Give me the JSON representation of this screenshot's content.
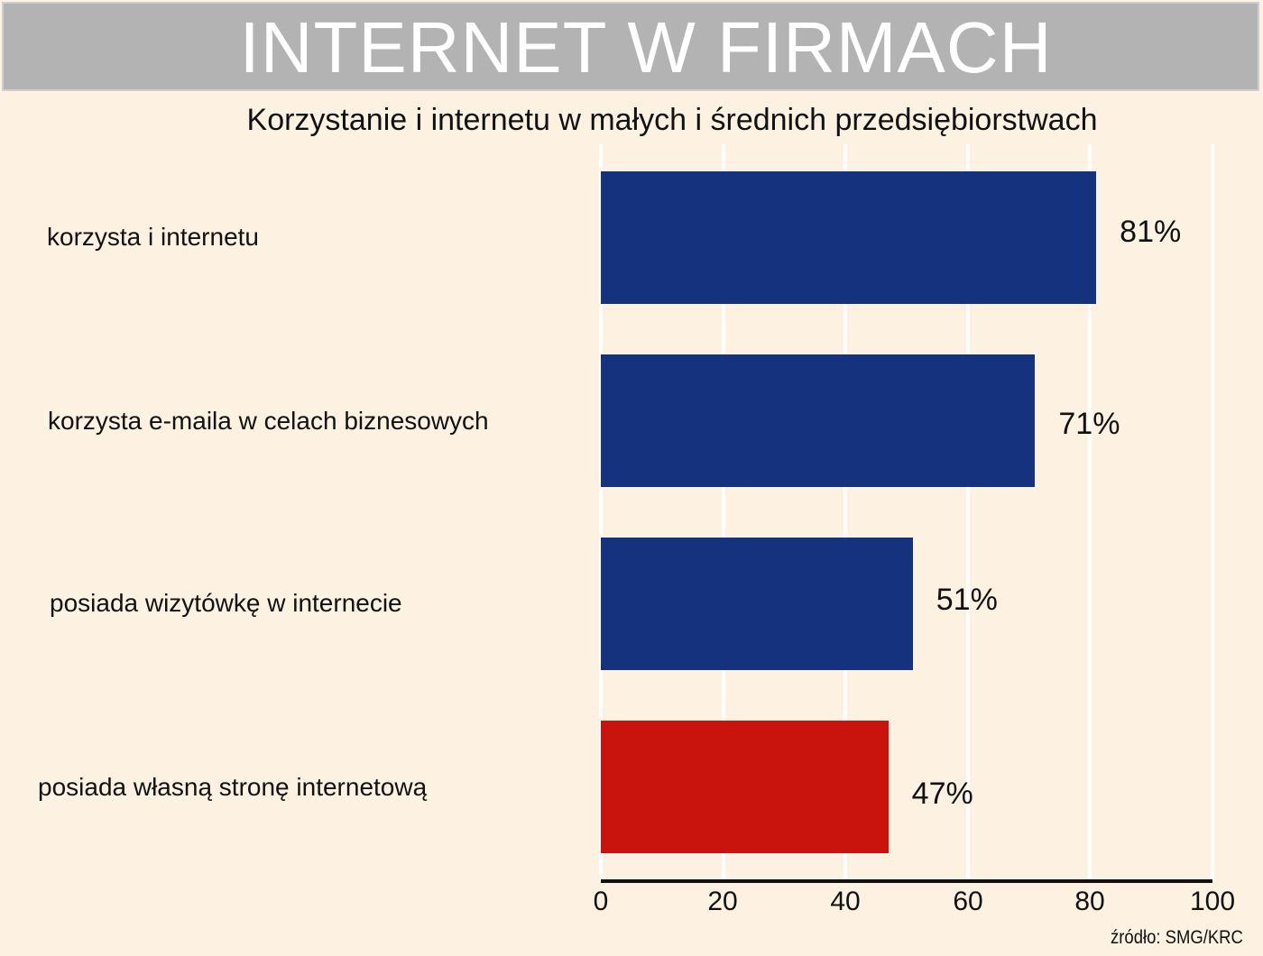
{
  "header": {
    "title": "INTERNET W FIRMACH"
  },
  "subtitle": "Korzystanie i internetu w małych i średnich przedsiębiorstwach",
  "source": "źródło: SMG/KRC",
  "colors": {
    "background": "#fdf1e2",
    "header_bg": "#b3b3b3",
    "bar_blue": "#15327e",
    "bar_red": "#c9140e",
    "gridline": "#ffffff"
  },
  "axis": {
    "ticks": [
      "0",
      "20",
      "40",
      "60",
      "80",
      "100"
    ]
  },
  "bars": [
    {
      "label": "korzysta i internetu",
      "value": 81,
      "value_label": "81%",
      "color": "#15327e"
    },
    {
      "label": "korzysta e-maila w celach biznesowych",
      "value": 71,
      "value_label": "71%",
      "color": "#15327e"
    },
    {
      "label": "posiada wizytówkę w internecie",
      "value": 51,
      "value_label": "51%",
      "color": "#15327e"
    },
    {
      "label": "posiada własną stronę internetową",
      "value": 47,
      "value_label": "47%",
      "color": "#c9140e"
    }
  ],
  "chart_data": {
    "type": "bar",
    "orientation": "horizontal",
    "title": "INTERNET W FIRMACH",
    "subtitle": "Korzystanie i internetu w małych i średnich przedsiębiorstwach",
    "categories": [
      "korzysta i internetu",
      "korzysta e-maila w celach biznesowych",
      "posiada wizytówkę w internecie",
      "posiada własną stronę internetową"
    ],
    "values": [
      81,
      71,
      51,
      47
    ],
    "data_labels": [
      "81%",
      "71%",
      "51%",
      "47%"
    ],
    "bar_colors": [
      "#15327e",
      "#15327e",
      "#15327e",
      "#c9140e"
    ],
    "xlabel": "",
    "ylabel": "",
    "xlim": [
      0,
      100
    ],
    "xticks": [
      0,
      20,
      40,
      60,
      80,
      100
    ],
    "grid": "vertical, white",
    "legend": "none",
    "annotation": "źródło: SMG/KRC"
  }
}
